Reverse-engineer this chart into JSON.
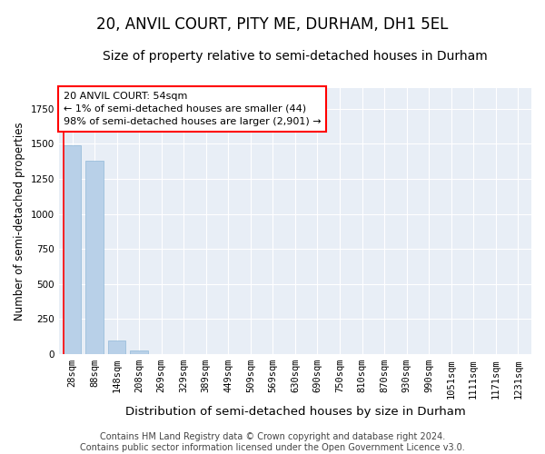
{
  "title": "20, ANVIL COURT, PITY ME, DURHAM, DH1 5EL",
  "subtitle": "Size of property relative to semi-detached houses in Durham",
  "xlabel": "Distribution of semi-detached houses by size in Durham",
  "ylabel": "Number of semi-detached properties",
  "categories": [
    "28sqm",
    "88sqm",
    "148sqm",
    "208sqm",
    "269sqm",
    "329sqm",
    "389sqm",
    "449sqm",
    "509sqm",
    "569sqm",
    "630sqm",
    "690sqm",
    "750sqm",
    "810sqm",
    "870sqm",
    "930sqm",
    "990sqm",
    "1051sqm",
    "1111sqm",
    "1171sqm",
    "1231sqm"
  ],
  "values": [
    1490,
    1380,
    95,
    25,
    0,
    0,
    0,
    0,
    0,
    0,
    0,
    0,
    0,
    0,
    0,
    0,
    0,
    0,
    0,
    0,
    0
  ],
  "bar_color": "#b8d0e8",
  "bar_edge_color": "#90b8d8",
  "annotation_text_line1": "20 ANVIL COURT: 54sqm",
  "annotation_text_line2": "← 1% of semi-detached houses are smaller (44)",
  "annotation_text_line3": "98% of semi-detached houses are larger (2,901) →",
  "ylim": [
    0,
    1900
  ],
  "plot_bg_color": "#e8eef6",
  "fig_bg_color": "#ffffff",
  "grid_color": "#ffffff",
  "red_line_x": 0.5,
  "footer": "Contains HM Land Registry data © Crown copyright and database right 2024.\nContains public sector information licensed under the Open Government Licence v3.0.",
  "title_fontsize": 12,
  "subtitle_fontsize": 10,
  "ylabel_fontsize": 8.5,
  "xlabel_fontsize": 9.5,
  "tick_fontsize": 7.5,
  "footer_fontsize": 7,
  "annotation_fontsize": 8
}
